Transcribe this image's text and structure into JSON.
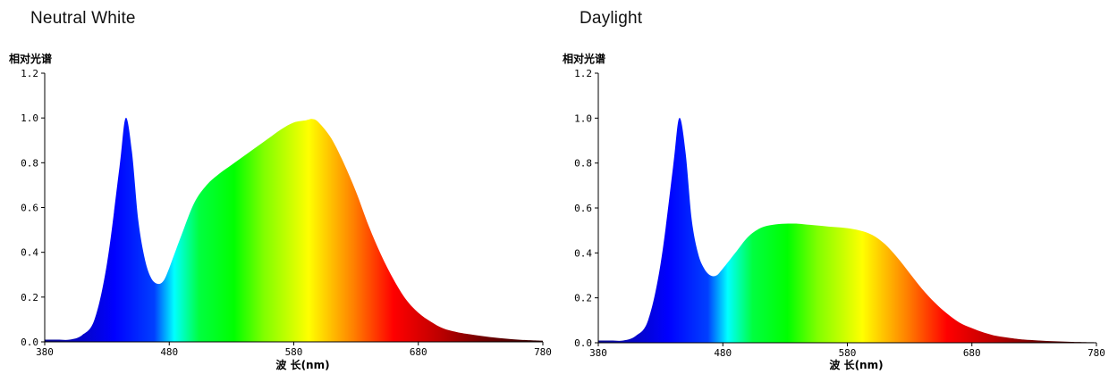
{
  "colors": {
    "spectrum": [
      "#0a0a8a",
      "#0000ff",
      "#0040ff",
      "#00ffff",
      "#00ff40",
      "#00ff00",
      "#80ff00",
      "#ffff00",
      "#ff8000",
      "#ff0000",
      "#c00000",
      "#700000",
      "#300000"
    ]
  },
  "chart_data": [
    {
      "type": "area",
      "title": "Neutral White",
      "ylabel": "相对光谱",
      "xlabel": "波 长(nm)",
      "xlim": [
        380,
        780
      ],
      "ylim": [
        0,
        1.2
      ],
      "x_ticks": [
        "380",
        "480",
        "580",
        "680",
        "780"
      ],
      "y_ticks": [
        "0.0",
        "0.2",
        "0.4",
        "0.6",
        "0.8",
        "1.0",
        "1.2"
      ],
      "grid": false,
      "x": [
        380,
        390,
        400,
        410,
        420,
        430,
        440,
        445,
        450,
        455,
        460,
        465,
        470,
        475,
        480,
        490,
        500,
        510,
        520,
        530,
        540,
        550,
        560,
        570,
        580,
        590,
        595,
        600,
        610,
        620,
        630,
        640,
        650,
        660,
        670,
        680,
        690,
        700,
        710,
        720,
        740,
        760,
        780
      ],
      "values": [
        0.01,
        0.01,
        0.01,
        0.03,
        0.1,
        0.35,
        0.78,
        1.0,
        0.85,
        0.55,
        0.38,
        0.29,
        0.26,
        0.27,
        0.33,
        0.48,
        0.62,
        0.7,
        0.75,
        0.79,
        0.83,
        0.87,
        0.91,
        0.95,
        0.98,
        0.99,
        0.995,
        0.98,
        0.91,
        0.8,
        0.67,
        0.52,
        0.39,
        0.28,
        0.19,
        0.13,
        0.09,
        0.06,
        0.045,
        0.035,
        0.02,
        0.01,
        0.005
      ]
    },
    {
      "type": "area",
      "title": "Daylight",
      "ylabel": "相对光谱",
      "xlabel": "波 长(nm)",
      "xlim": [
        380,
        780
      ],
      "ylim": [
        0,
        1.2
      ],
      "x_ticks": [
        "380",
        "480",
        "580",
        "680",
        "780"
      ],
      "y_ticks": [
        "0.0",
        "0.2",
        "0.4",
        "0.6",
        "0.8",
        "1.0",
        "1.2"
      ],
      "grid": false,
      "x": [
        380,
        390,
        400,
        410,
        420,
        430,
        440,
        445,
        450,
        455,
        460,
        465,
        470,
        475,
        480,
        490,
        500,
        510,
        520,
        530,
        540,
        550,
        560,
        570,
        580,
        590,
        600,
        610,
        620,
        630,
        640,
        650,
        660,
        670,
        680,
        690,
        700,
        710,
        720,
        740,
        760,
        780
      ],
      "values": [
        0.01,
        0.01,
        0.01,
        0.03,
        0.1,
        0.35,
        0.78,
        1.0,
        0.85,
        0.55,
        0.4,
        0.33,
        0.3,
        0.3,
        0.33,
        0.4,
        0.47,
        0.51,
        0.525,
        0.53,
        0.53,
        0.525,
        0.52,
        0.515,
        0.51,
        0.5,
        0.48,
        0.44,
        0.38,
        0.31,
        0.24,
        0.18,
        0.13,
        0.09,
        0.065,
        0.045,
        0.03,
        0.022,
        0.015,
        0.008,
        0.004,
        0.002
      ]
    }
  ]
}
